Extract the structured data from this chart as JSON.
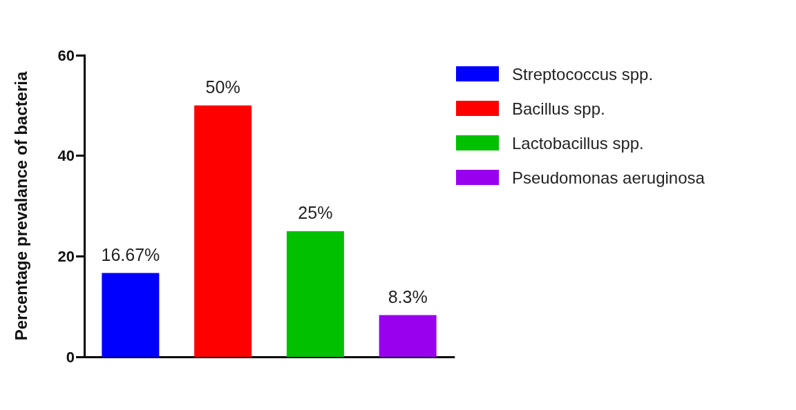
{
  "chart_data": {
    "type": "bar",
    "ylabel": "Percentage prevalance of bacteria",
    "categories": [
      null,
      null,
      null,
      null
    ],
    "series": [
      {
        "name": "Streptococcus spp.",
        "color": "#0000ff",
        "values": [
          16.67,
          null,
          null,
          null
        ],
        "value_labels": [
          "16.67%",
          null,
          null,
          null
        ]
      },
      {
        "name": "Bacillus spp.",
        "color": "#ff0000",
        "values": [
          null,
          50,
          null,
          null
        ],
        "value_labels": [
          null,
          "50%",
          null,
          null
        ]
      },
      {
        "name": "Lactobacillus spp.",
        "color": "#00c000",
        "values": [
          null,
          null,
          25,
          null
        ],
        "value_labels": [
          null,
          null,
          "25%",
          null
        ]
      },
      {
        "name": "Pseudomonas aeruginosa",
        "color": "#9900ee",
        "values": [
          null,
          null,
          null,
          8.3
        ],
        "value_labels": [
          null,
          null,
          null,
          "8.3%"
        ]
      }
    ],
    "ylim": [
      0,
      60
    ],
    "yticks": [
      0,
      20,
      40,
      60
    ],
    "grid": false,
    "legend": "right",
    "tick_labels": "y"
  }
}
